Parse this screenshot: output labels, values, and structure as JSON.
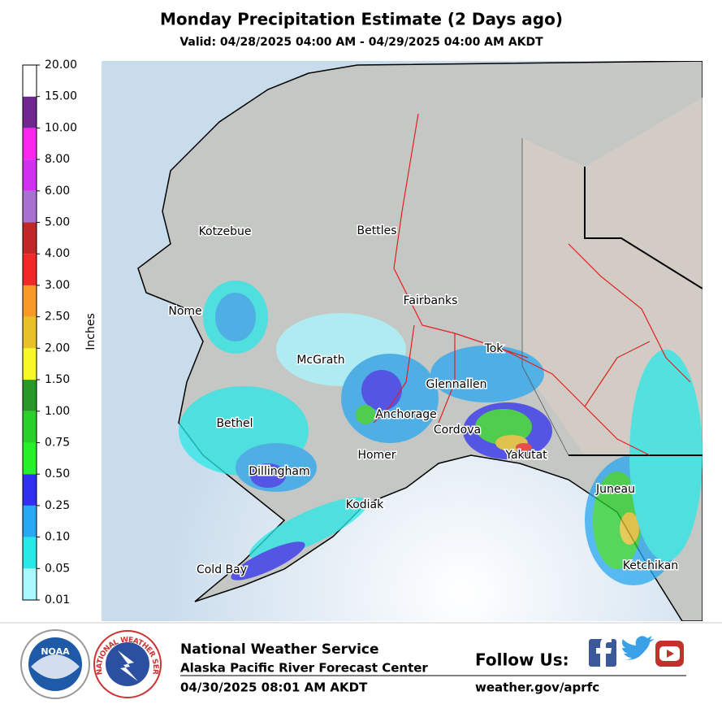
{
  "header": {
    "title": "Monday Precipitation Estimate (2 Days ago)",
    "subtitle": "Valid: 04/28/2025 04:00 AM - 04/29/2025 04:00 AM AKDT"
  },
  "map": {
    "colorbar": {
      "label": "Inches",
      "ticks": [
        {
          "value": 0.01,
          "label": "0.01"
        },
        {
          "value": 0.05,
          "label": "0.05"
        },
        {
          "value": 0.1,
          "label": "0.10"
        },
        {
          "value": 0.25,
          "label": "0.25"
        },
        {
          "value": 0.5,
          "label": "0.50"
        },
        {
          "value": 0.75,
          "label": "0.75"
        },
        {
          "value": 1,
          "label": "1.00"
        },
        {
          "value": 1.5,
          "label": "1.50"
        },
        {
          "value": 2,
          "label": "2.00"
        },
        {
          "value": 2.5,
          "label": "2.50"
        },
        {
          "value": 3,
          "label": "3.00"
        },
        {
          "value": 4,
          "label": "4.00"
        },
        {
          "value": 5,
          "label": "5.00"
        },
        {
          "value": 6,
          "label": "6.00"
        },
        {
          "value": 8,
          "label": "8.00"
        },
        {
          "value": 10,
          "label": "10.00"
        },
        {
          "value": 15,
          "label": "15.00"
        },
        {
          "value": 20,
          "label": "20.00"
        }
      ],
      "colors": [
        "#a8f8ff",
        "#28e8e8",
        "#28a8f0",
        "#3030f0",
        "#28f028",
        "#28d028",
        "#289828",
        "#f8f828",
        "#e8c028",
        "#f89828",
        "#f02828",
        "#c02828",
        "#a870d0",
        "#d030f0",
        "#f828f0",
        "#702890",
        "#ffffff"
      ]
    },
    "cities": [
      "Kotzebue",
      "Bettles",
      "Nome",
      "Fairbanks",
      "McGrath",
      "Tok",
      "Glennallen",
      "Anchorage",
      "Bethel",
      "Cordova",
      "Homer",
      "Yakutat",
      "Dillingham",
      "Juneau",
      "Kodiak",
      "Cold Bay",
      "Ketchikan"
    ]
  },
  "footer": {
    "noaa_logo": "NOAA",
    "nws_logo": "NATIONAL WEATHER SERVICE",
    "org": "National Weather Service",
    "office": "Alaska Pacific River Forecast Center",
    "timestamp": "04/30/2025 08:01 AM AKDT",
    "follow": "Follow Us:",
    "website": "weather.gov/aprfc"
  }
}
